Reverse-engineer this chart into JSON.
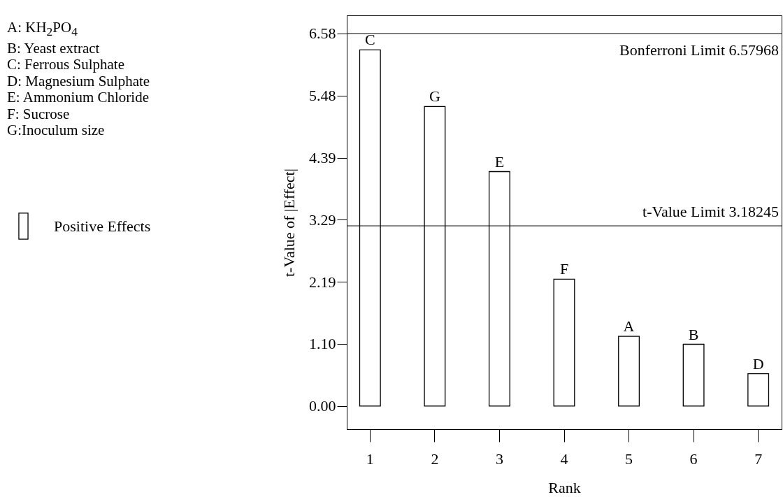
{
  "chart_data": {
    "type": "bar",
    "xlabel": "Rank",
    "ylabel": "t-Value of |Effect|",
    "categories": [
      "1",
      "2",
      "3",
      "4",
      "5",
      "6",
      "7"
    ],
    "series": [
      {
        "name": "Positive Effects",
        "color": "#ffffff",
        "values": [
          6.29,
          5.29,
          4.14,
          2.24,
          null,
          null,
          null
        ]
      },
      {
        "color": "#ffffff",
        "values": [
          null,
          null,
          null,
          null,
          1.23,
          1.09,
          0.57
        ]
      }
    ],
    "ylim": [
      -0.41,
      6.9
    ],
    "yticks": [
      {
        "value": 0,
        "label": "0.00"
      },
      {
        "value": 1.0966,
        "label": "1.10"
      },
      {
        "value": 2.1932,
        "label": "2.19"
      },
      {
        "value": 3.2898,
        "label": "3.29"
      },
      {
        "value": 4.3864,
        "label": "4.39"
      },
      {
        "value": 5.483,
        "label": "5.48"
      },
      {
        "value": 6.5797,
        "label": "6.58"
      }
    ],
    "ref_lines": [
      {
        "axis": "y",
        "value": 6.57968,
        "label": "Bonferroni Limit 6.57968"
      },
      {
        "axis": "y",
        "value": 3.18245,
        "label": "t-Value Limit 3.18245"
      }
    ],
    "annotations": [
      {
        "text": "C",
        "x": "1",
        "y": 6.29
      },
      {
        "text": "G",
        "x": "2",
        "y": 5.29
      },
      {
        "text": "E",
        "x": "3",
        "y": 4.14
      },
      {
        "text": "F",
        "x": "4",
        "y": 2.24
      },
      {
        "text": "A",
        "x": "5",
        "y": 1.23
      },
      {
        "text": "B",
        "x": "6",
        "y": 1.09
      },
      {
        "text": "D",
        "x": "7",
        "y": 0.57
      },
      "A: KH$_{2}$PO$_{4}$",
      "B: Yeast extract",
      "C: Ferrous Sulphate",
      "D: Magnesium Sulphate",
      "E: Ammonium Chloride",
      "F: Sucrose",
      "G:Inoculum size"
    ],
    "legend": "left",
    "grid": false
  }
}
